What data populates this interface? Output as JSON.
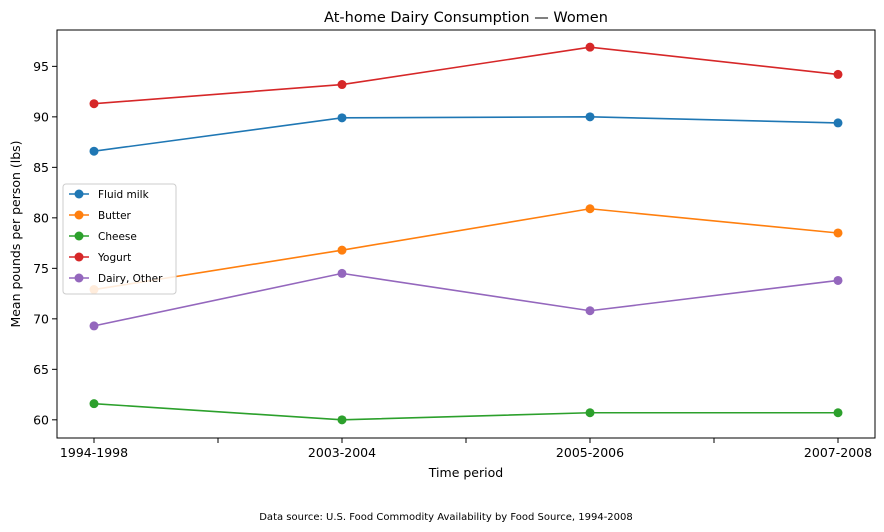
{
  "chart_data": {
    "type": "line",
    "title": "At-home Dairy Consumption — Women",
    "xlabel": "Time period",
    "ylabel": "Mean pounds per person (lbs)",
    "categories": [
      "1994-1998",
      "2003-2004",
      "2005-2006",
      "2007-2008"
    ],
    "ylim": [
      58.2,
      98.6
    ],
    "yticks": [
      60,
      65,
      70,
      75,
      80,
      85,
      90,
      95
    ],
    "grid": false,
    "legend_position": "center-left",
    "series": [
      {
        "name": "Fluid milk",
        "color": "#1f77b4",
        "values": [
          86.6,
          89.9,
          90.0,
          89.4
        ]
      },
      {
        "name": "Butter",
        "color": "#ff7f0e",
        "values": [
          72.9,
          76.8,
          80.9,
          78.5
        ]
      },
      {
        "name": "Cheese",
        "color": "#2ca02c",
        "values": [
          61.6,
          60.0,
          60.7,
          60.7
        ]
      },
      {
        "name": "Yogurt",
        "color": "#d62728",
        "values": [
          91.3,
          93.2,
          96.9,
          94.2
        ]
      },
      {
        "name": "Dairy, Other",
        "color": "#9467bd",
        "values": [
          69.3,
          74.5,
          70.8,
          73.8
        ]
      }
    ],
    "source_note": "Data source: U.S. Food Commodity Availability by Food Source, 1994-2008"
  }
}
